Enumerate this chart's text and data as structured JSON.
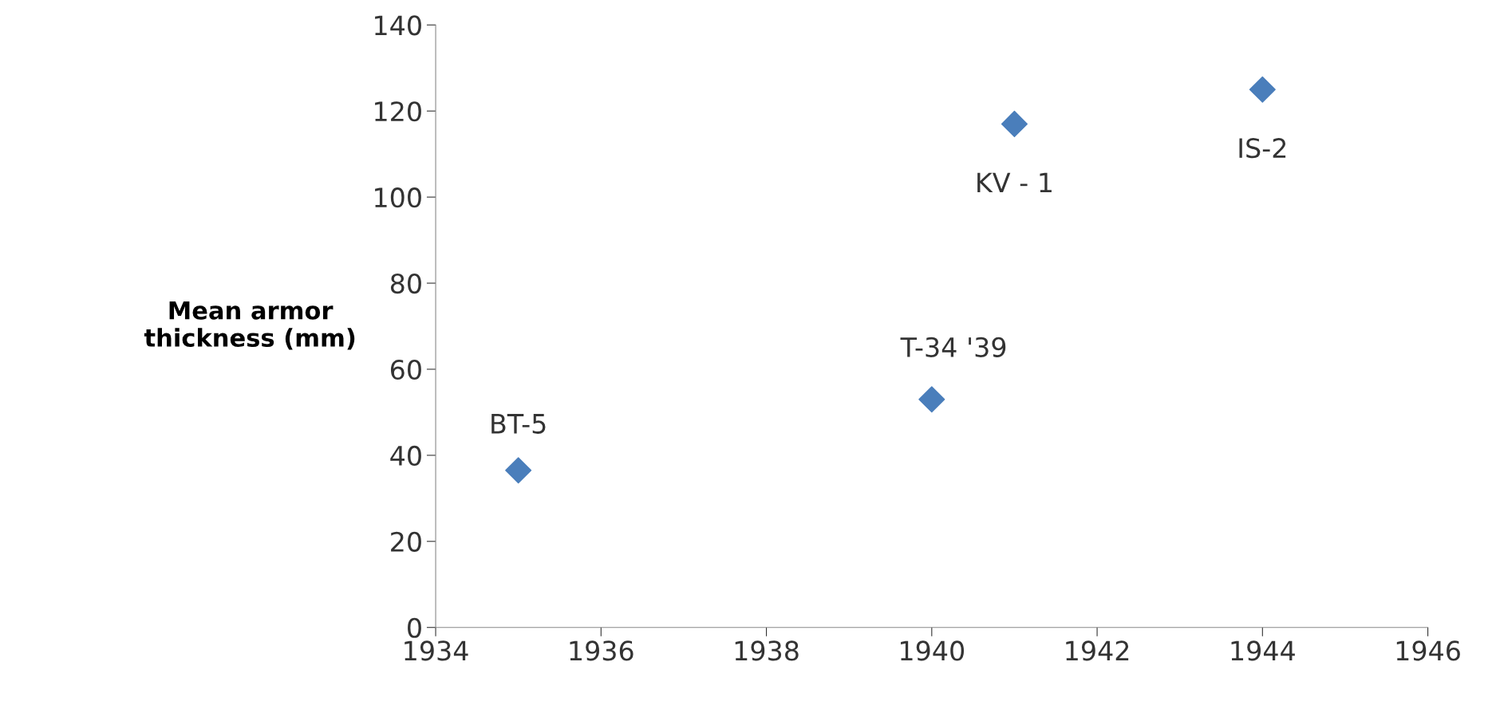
{
  "chart_data": {
    "type": "scatter",
    "ylabel": "Mean armor\nthickness (mm)",
    "x": [
      1935,
      1940,
      1941,
      1944
    ],
    "series": [
      {
        "color": "#4a7ebb",
        "values": [
          36.5,
          53,
          117,
          125
        ]
      }
    ],
    "marker": "diamond",
    "grid": false,
    "legend": false,
    "xlim": [
      1934,
      1946
    ],
    "xticks": [
      1934,
      1936,
      1938,
      1940,
      1942,
      1944,
      1946
    ],
    "ylim": [
      0,
      140
    ],
    "yticks": [
      0,
      20,
      40,
      60,
      80,
      100,
      120,
      140
    ],
    "annotations": [
      {
        "text": "BT-5",
        "x": 1935,
        "y": 36.5
      },
      {
        "text": "T-34 '39",
        "x": 1940,
        "y": 53
      },
      {
        "text": "KV - 1",
        "x": 1941,
        "y": 117
      },
      {
        "text": "IS-2",
        "x": 1944,
        "y": 125
      }
    ]
  }
}
